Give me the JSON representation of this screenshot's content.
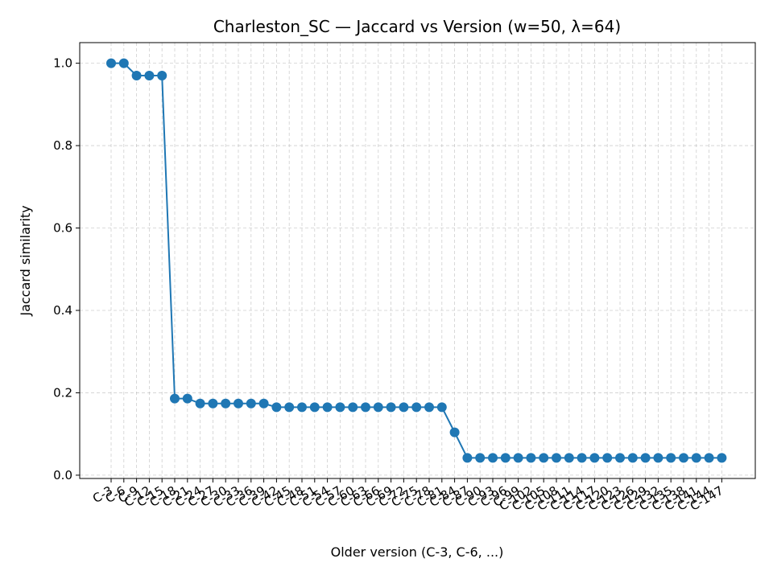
{
  "chart_data": {
    "type": "line",
    "title": "Charleston_SC — Jaccard vs Version (w=50, λ=64)",
    "xlabel": "Older version (C-3, C-6, ...)",
    "ylabel": "Jaccard similarity",
    "ylim": [
      -0.008,
      1.05
    ],
    "yticks": [
      0.0,
      0.2,
      0.4,
      0.6,
      0.8,
      1.0
    ],
    "ytick_labels": [
      "0.0",
      "0.2",
      "0.4",
      "0.6",
      "0.8",
      "1.0"
    ],
    "grid": true,
    "marker": "circle",
    "color": "#1f77b4",
    "categories": [
      "C-3",
      "C-6",
      "C-9",
      "C-12",
      "C-15",
      "C-18",
      "C-21",
      "C-24",
      "C-27",
      "C-30",
      "C-33",
      "C-36",
      "C-39",
      "C-42",
      "C-45",
      "C-48",
      "C-51",
      "C-54",
      "C-57",
      "C-60",
      "C-63",
      "C-66",
      "C-69",
      "C-72",
      "C-75",
      "C-78",
      "C-81",
      "C-84",
      "C-87",
      "C-90",
      "C-93",
      "C-96",
      "C-99",
      "C-102",
      "C-105",
      "C-108",
      "C-111",
      "C-114",
      "C-117",
      "C-120",
      "C-123",
      "C-126",
      "C-129",
      "C-132",
      "C-135",
      "C-138",
      "C-141",
      "C-144",
      "C-147"
    ],
    "values": [
      1.0,
      1.0,
      0.97,
      0.97,
      0.97,
      0.186,
      0.186,
      0.174,
      0.174,
      0.174,
      0.174,
      0.174,
      0.174,
      0.165,
      0.165,
      0.165,
      0.165,
      0.165,
      0.165,
      0.165,
      0.165,
      0.165,
      0.165,
      0.165,
      0.165,
      0.165,
      0.165,
      0.104,
      0.042,
      0.042,
      0.042,
      0.042,
      0.042,
      0.042,
      0.042,
      0.042,
      0.042,
      0.042,
      0.042,
      0.042,
      0.042,
      0.042,
      0.042,
      0.042,
      0.042,
      0.042,
      0.042,
      0.042,
      0.042
    ]
  }
}
